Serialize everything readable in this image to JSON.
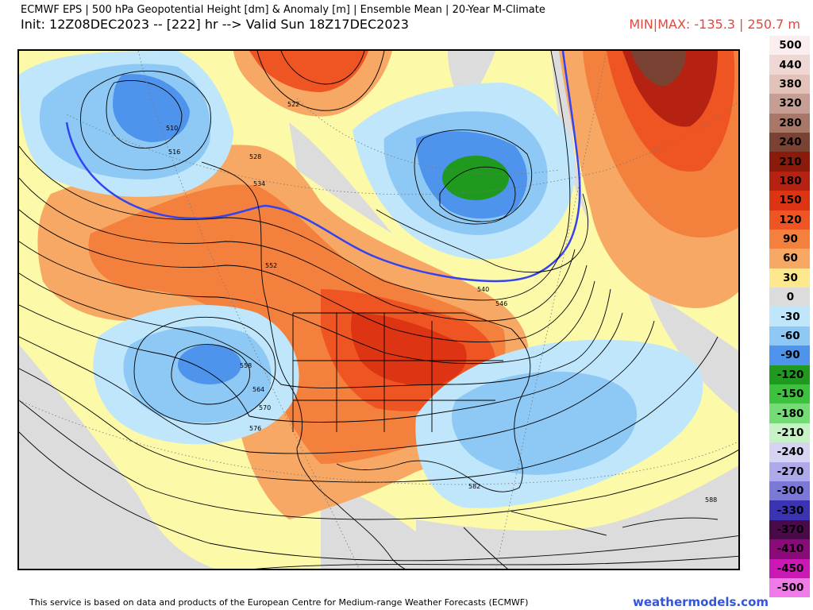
{
  "header": {
    "line1": "ECMWF EPS | 500 hPa Geopotential Height [dm] & Anomaly [m] | Ensemble Mean | 20-Year M-Climate",
    "line2": "Init: 12Z08DEC2023 -- [222] hr --> Valid Sun 18Z17DEC2023",
    "minmax": "MIN|MAX: -135.3 | 250.7 m",
    "minmax_color": "#e8463c"
  },
  "legend": {
    "items": [
      {
        "label": "500",
        "color": "#fbeeee"
      },
      {
        "label": "440",
        "color": "#efd8d4"
      },
      {
        "label": "380",
        "color": "#e3c2b9"
      },
      {
        "label": "320",
        "color": "#c79e93"
      },
      {
        "label": "280",
        "color": "#a87767"
      },
      {
        "label": "240",
        "color": "#7a4232"
      },
      {
        "label": "210",
        "color": "#8a1a0a"
      },
      {
        "label": "180",
        "color": "#b52212"
      },
      {
        "label": "150",
        "color": "#dd3414"
      },
      {
        "label": "120",
        "color": "#ee5522"
      },
      {
        "label": "90",
        "color": "#f4803e"
      },
      {
        "label": "60",
        "color": "#f7a864"
      },
      {
        "label": "30",
        "color": "#fde88e"
      },
      {
        "label": "0",
        "color": "#dcdcdc"
      },
      {
        "label": "-30",
        "color": "#bfe6fb"
      },
      {
        "label": "-60",
        "color": "#8ec8f4"
      },
      {
        "label": "-90",
        "color": "#4f94ec"
      },
      {
        "label": "-120",
        "color": "#1f9a1f"
      },
      {
        "label": "-150",
        "color": "#3cc23c"
      },
      {
        "label": "-180",
        "color": "#74dc74"
      },
      {
        "label": "-210",
        "color": "#c6f2c6"
      },
      {
        "label": "-240",
        "color": "#d6d4f2"
      },
      {
        "label": "-270",
        "color": "#aeaaea"
      },
      {
        "label": "-300",
        "color": "#7c78d8"
      },
      {
        "label": "-330",
        "color": "#3a34b2"
      },
      {
        "label": "-370",
        "color": "#4a0a4a"
      },
      {
        "label": "-410",
        "color": "#8a0a7a"
      },
      {
        "label": "-450",
        "color": "#cc18b4"
      },
      {
        "label": "-500",
        "color": "#f07ae8"
      }
    ]
  },
  "map": {
    "contour_labels": [
      "510",
      "516",
      "522",
      "528",
      "534",
      "540",
      "546",
      "552",
      "558",
      "564",
      "570",
      "576",
      "582",
      "588"
    ],
    "anomaly_colors": {
      "strong_positive": "#dd3414",
      "positive": "#f4803e",
      "weak_positive": "#fde88e",
      "neutral": "#dcdcdc",
      "weak_negative": "#bfe6fb",
      "negative": "#4f94ec",
      "strong_negative": "#1f9a1f"
    },
    "reference_contour_color": "#3344ee"
  },
  "footer": {
    "attribution": "This service is based on data and products of the European Centre for Medium-range Weather Forecasts (ECMWF)",
    "brand": "weathermodels.com"
  }
}
